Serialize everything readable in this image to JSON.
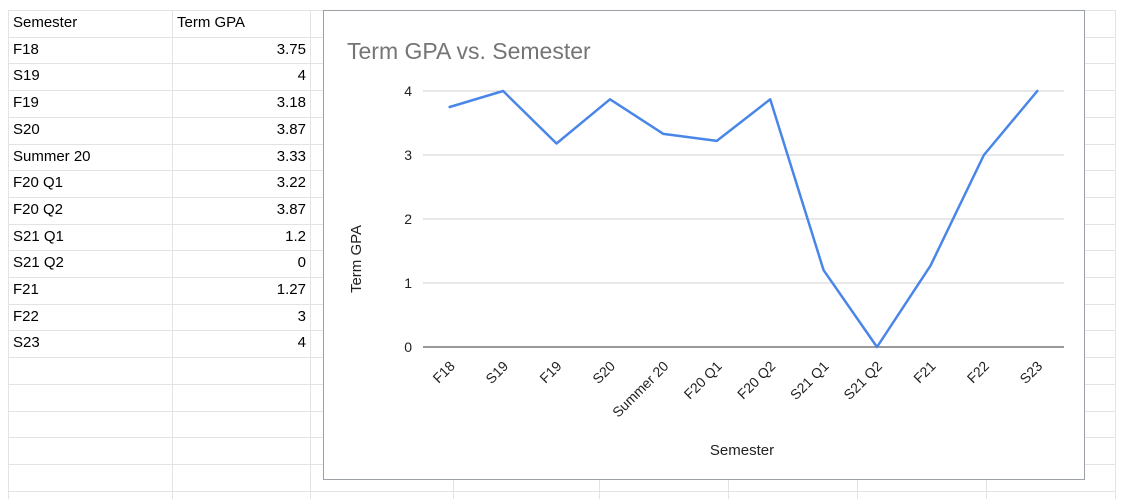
{
  "table": {
    "headers": [
      "Semester",
      "Term GPA"
    ],
    "rows": [
      [
        "F18",
        "3.75"
      ],
      [
        "S19",
        "4"
      ],
      [
        "F19",
        "3.18"
      ],
      [
        "S20",
        "3.87"
      ],
      [
        "Summer 20",
        "3.33"
      ],
      [
        "F20 Q1",
        "3.22"
      ],
      [
        "F20 Q2",
        "3.87"
      ],
      [
        "S21 Q1",
        "1.2"
      ],
      [
        "S21 Q2",
        "0"
      ],
      [
        "F21",
        "1.27"
      ],
      [
        "F22",
        "3"
      ],
      [
        "S23",
        "4"
      ]
    ]
  },
  "chart_data": {
    "type": "line",
    "title": "Term GPA  vs. Semester",
    "xlabel": "Semester",
    "ylabel": "Term GPA",
    "categories": [
      "F18",
      "S19",
      "F19",
      "S20",
      "Summer 20",
      "F20 Q1",
      "F20 Q2",
      "S21 Q1",
      "S21 Q2",
      "F21",
      "F22",
      "S23"
    ],
    "series": [
      {
        "values": [
          3.75,
          4,
          3.18,
          3.87,
          3.33,
          3.22,
          3.87,
          1.2,
          0,
          1.27,
          3,
          4
        ],
        "color": "#4a86e8"
      }
    ],
    "ylim": [
      0,
      4
    ],
    "yticks": [
      0,
      1,
      2,
      3,
      4
    ],
    "grid": true,
    "legend": "none"
  }
}
